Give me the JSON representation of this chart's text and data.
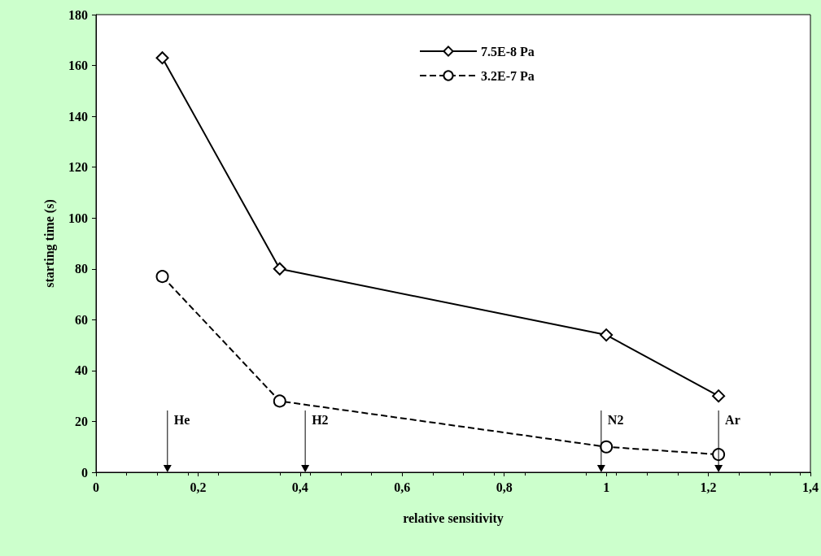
{
  "chart_data": {
    "type": "line",
    "xlabel": "relative sensitivity",
    "ylabel": "starting time (s)",
    "xlim": [
      0,
      1.4
    ],
    "xticks": [
      0,
      {
        "value": 0.2,
        "label": "0,2"
      },
      {
        "value": 0.4,
        "label": "0,4"
      },
      {
        "value": 0.6,
        "label": "0,6"
      },
      {
        "value": 0.8,
        "label": "0,8"
      },
      1,
      {
        "value": 1.2,
        "label": "1,2"
      },
      {
        "value": 1.4,
        "label": "1,4"
      }
    ],
    "ylim": [
      0,
      180
    ],
    "yticks": [
      0,
      20,
      40,
      60,
      80,
      100,
      120,
      140,
      160,
      180
    ],
    "grid": false,
    "legend": "top",
    "series": [
      {
        "name": "7.5E-8 Pa",
        "color": "#000000",
        "marker": "diamond",
        "line_style": "solid",
        "x": [
          0.13,
          0.36,
          1.0,
          1.22
        ],
        "values": [
          163,
          80,
          54,
          30
        ]
      },
      {
        "name": "3.2E-7 Pa",
        "color": "#000000",
        "marker": "circle",
        "line_style": "dashed",
        "x": [
          0.13,
          0.36,
          1.0,
          1.22
        ],
        "values": [
          77,
          28,
          10,
          7
        ]
      }
    ],
    "ref_lines": [
      {
        "axis": "x",
        "value": 0.14,
        "label": "He"
      },
      {
        "axis": "x",
        "value": 0.41,
        "label": "H2"
      },
      {
        "axis": "x",
        "value": 0.99,
        "label": "N2"
      },
      {
        "axis": "x",
        "value": 1.22,
        "label": "Ar"
      }
    ]
  }
}
